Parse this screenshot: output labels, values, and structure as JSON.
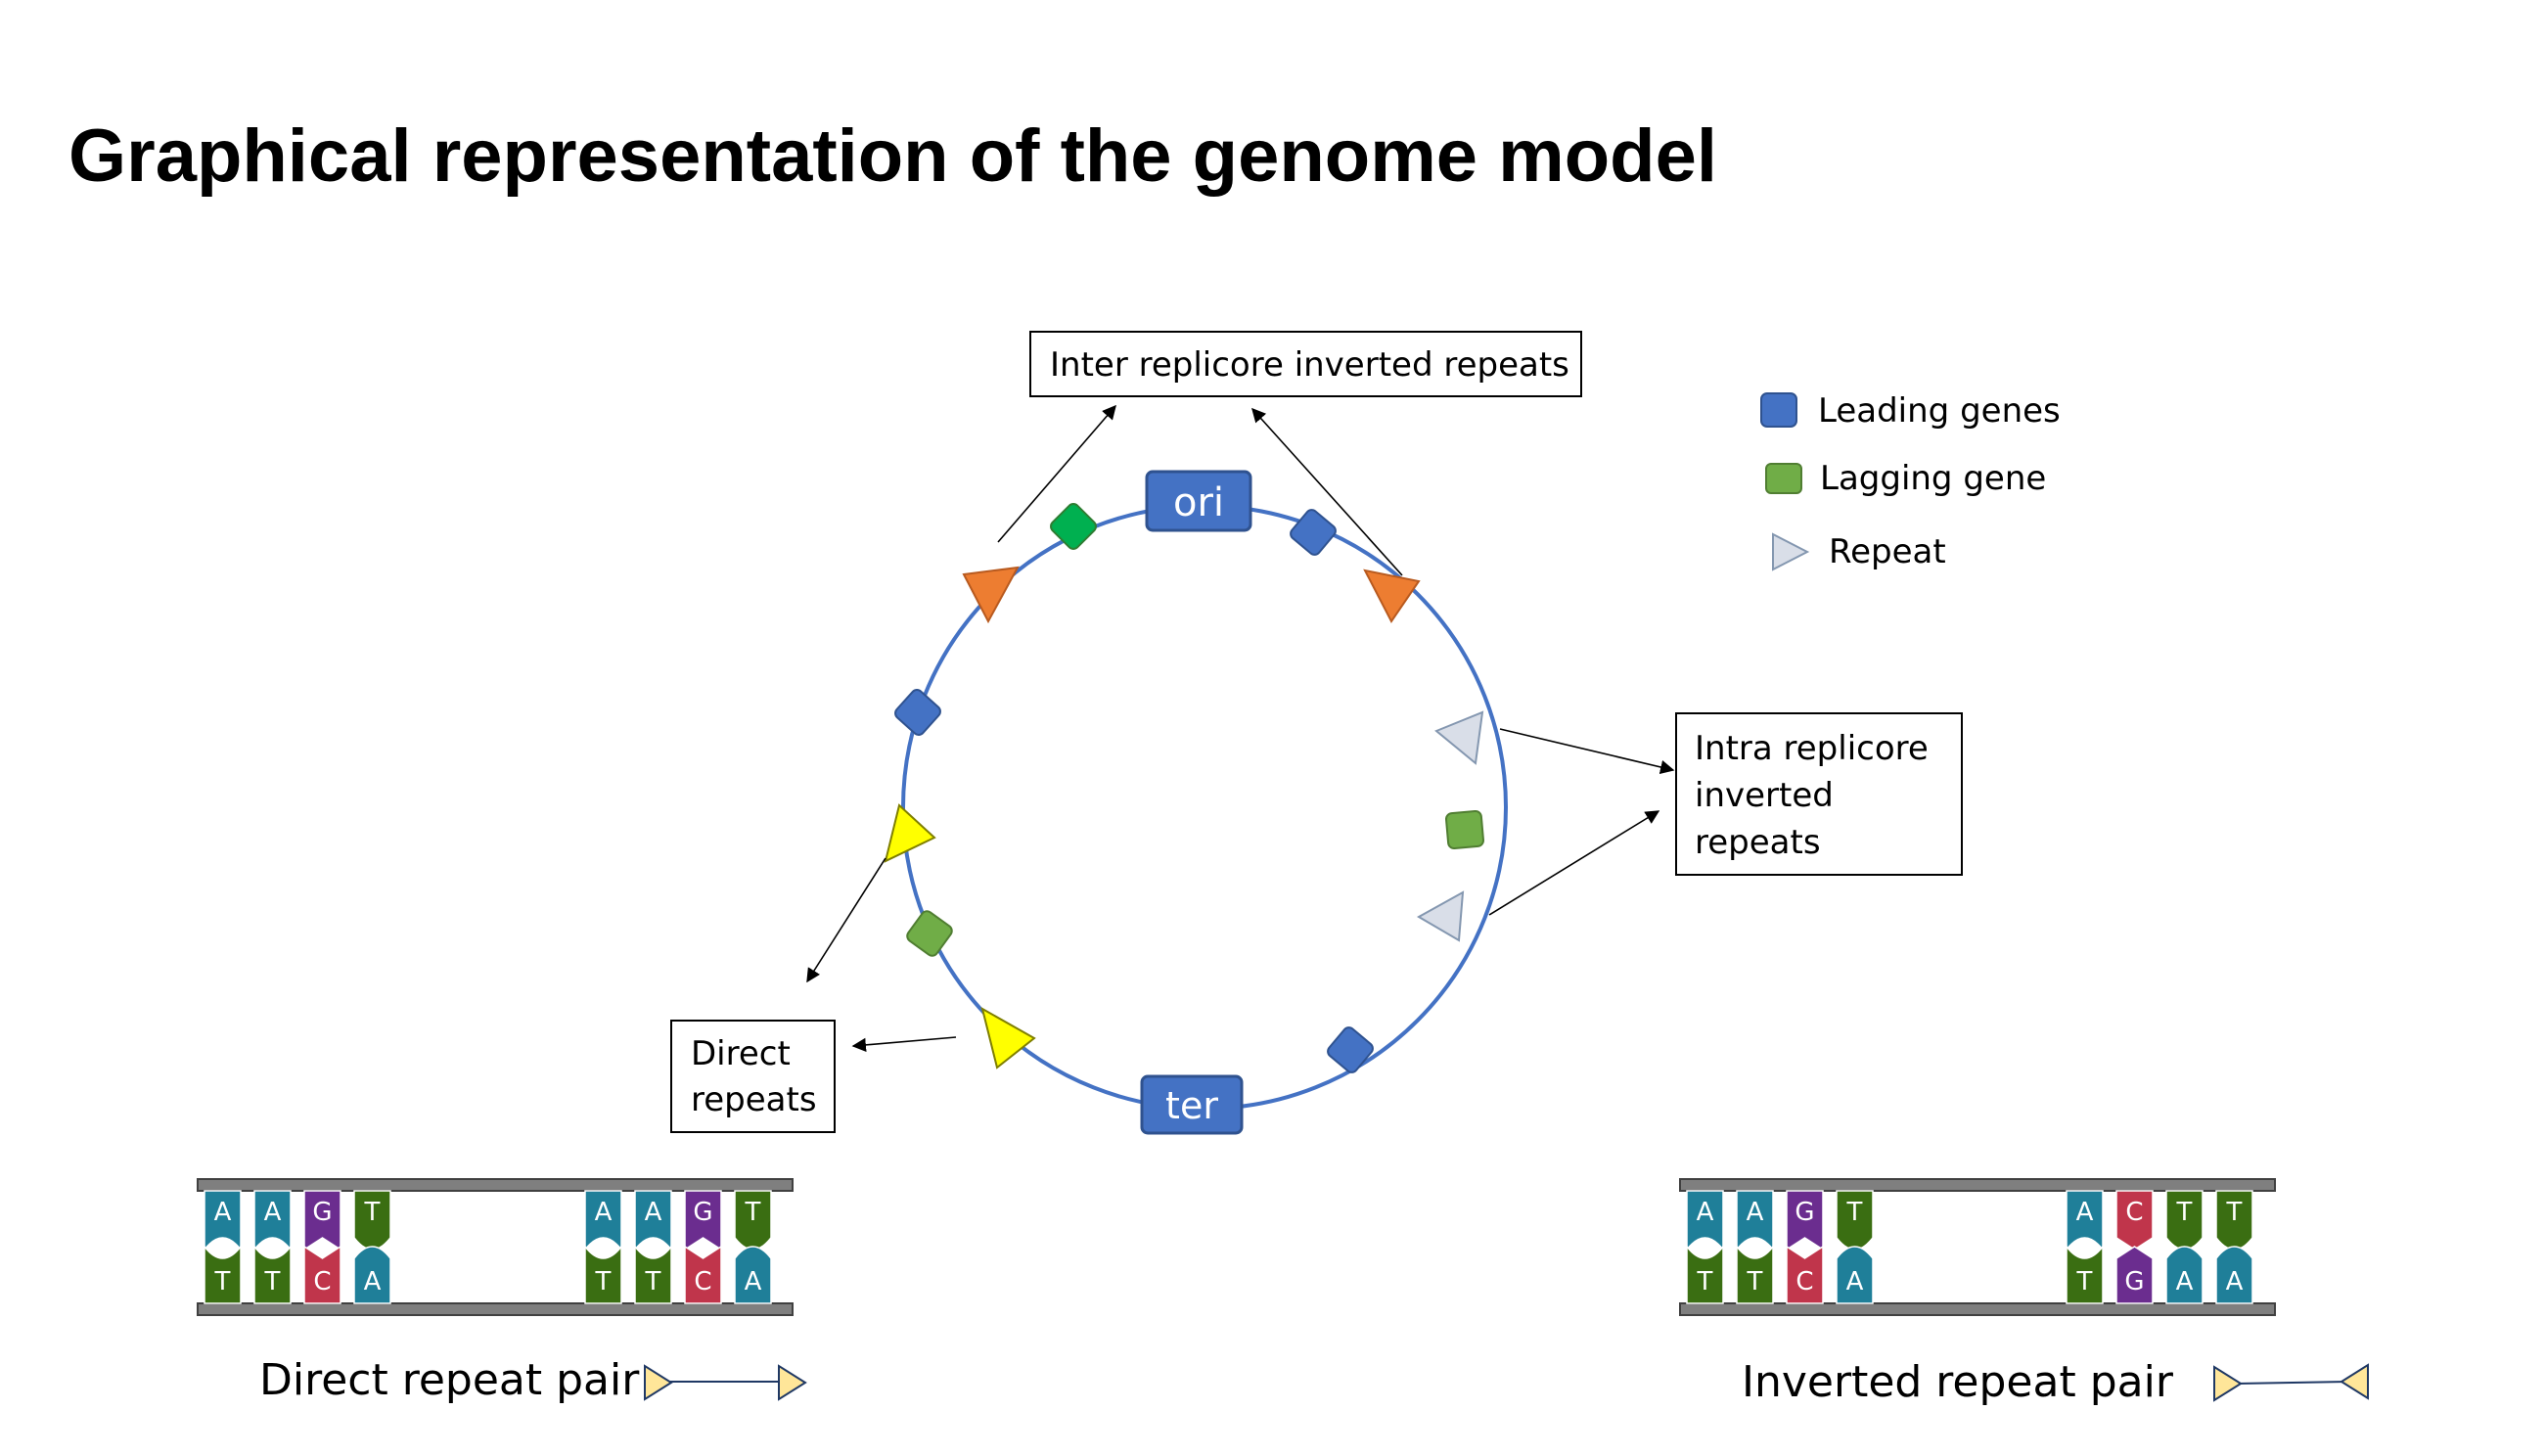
{
  "title": "Graphical representation of the genome model",
  "nodes": {
    "ori": "ori",
    "ter": "ter"
  },
  "callouts": {
    "inter": "Inter replicore inverted repeats",
    "intra": [
      "Intra replicore",
      "inverted",
      "repeats"
    ],
    "direct": [
      "Direct",
      "repeats"
    ]
  },
  "legend": {
    "leading": "Leading genes",
    "lagging": "Lagging gene",
    "repeat": "Repeat"
  },
  "direct_pair": {
    "label": "Direct repeat pair",
    "left_top": [
      "A",
      "A",
      "G",
      "T"
    ],
    "left_bottom": [
      "T",
      "T",
      "C",
      "A"
    ],
    "right_top": [
      "A",
      "A",
      "G",
      "T"
    ],
    "right_bottom": [
      "T",
      "T",
      "C",
      "A"
    ]
  },
  "inverted_pair": {
    "label": "Inverted repeat pair",
    "left_top": [
      "A",
      "A",
      "G",
      "T"
    ],
    "left_bottom": [
      "T",
      "T",
      "C",
      "A"
    ],
    "right_top": [
      "A",
      "C",
      "T",
      "T"
    ],
    "right_bottom": [
      "T",
      "G",
      "A",
      "A"
    ]
  },
  "colors": {
    "circle": "#4472C4",
    "leading": "#4472C4",
    "lagging": "#70AD47",
    "lagging_top": "#00B050",
    "inter_repeat": "#ED7D31",
    "intra_repeat": "#D9DEE8",
    "direct_repeat": "#FFFF00",
    "pair_repeat": "#FFE699",
    "base_A": "#1F7F99",
    "base_T": "#3A6E12",
    "base_G": "#6B2D8F",
    "base_C": "#C0354B"
  }
}
